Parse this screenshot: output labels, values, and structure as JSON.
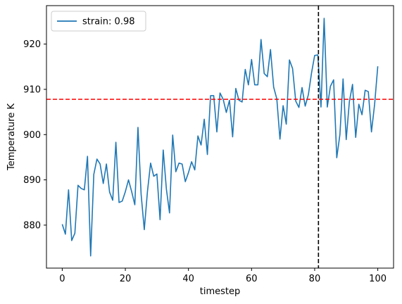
{
  "chart_data": {
    "type": "line",
    "xlabel": "timestep",
    "ylabel": "Temperature K",
    "xlim": [
      -5,
      105
    ],
    "ylim": [
      870.5,
      928.5
    ],
    "xticks": [
      0,
      20,
      40,
      60,
      80,
      100
    ],
    "yticks": [
      880,
      890,
      900,
      910,
      920
    ],
    "grid": false,
    "legend": {
      "placement": "top-left"
    },
    "series": [
      {
        "name": "strain: 0.98",
        "color": "#1f77b4",
        "x": [
          0,
          1,
          2,
          3,
          4,
          5,
          6,
          7,
          8,
          9,
          10,
          11,
          12,
          13,
          14,
          15,
          16,
          17,
          18,
          19,
          20,
          21,
          22,
          23,
          24,
          25,
          26,
          27,
          28,
          29,
          30,
          31,
          32,
          33,
          34,
          35,
          36,
          37,
          38,
          39,
          40,
          41,
          42,
          43,
          44,
          45,
          46,
          47,
          48,
          49,
          50,
          51,
          52,
          53,
          54,
          55,
          56,
          57,
          58,
          59,
          60,
          61,
          62,
          63,
          64,
          65,
          66,
          67,
          68,
          69,
          70,
          71,
          72,
          73,
          74,
          75,
          76,
          77,
          78,
          79,
          80,
          81,
          82,
          83,
          84,
          85,
          86,
          87,
          88,
          89,
          90,
          91,
          92,
          93,
          94,
          95,
          96,
          97,
          98,
          99,
          100
        ],
        "y": [
          880.2,
          878.0,
          887.8,
          876.6,
          878.2,
          888.8,
          888.1,
          887.8,
          895.2,
          873.2,
          891.2,
          894.6,
          893.5,
          889.2,
          893.5,
          887.3,
          885.5,
          898.3,
          885.0,
          885.3,
          887.4,
          890.0,
          887.4,
          884.5,
          901.6,
          886.8,
          879.0,
          887.4,
          893.7,
          890.8,
          891.3,
          881.2,
          896.6,
          888.0,
          882.7,
          899.9,
          891.8,
          893.7,
          893.5,
          889.6,
          891.6,
          894.0,
          892.2,
          899.7,
          897.7,
          903.4,
          895.6,
          908.6,
          908.6,
          900.6,
          909.2,
          907.8,
          904.9,
          907.6,
          899.5,
          910.2,
          907.6,
          907.2,
          914.4,
          911.0,
          916.6,
          911.0,
          911.0,
          921.0,
          913.5,
          912.8,
          918.8,
          910.5,
          907.9,
          899.0,
          906.4,
          902.3,
          916.5,
          914.6,
          907.4,
          906.0,
          910.4,
          906.3,
          908.8,
          913.6,
          917.5,
          917.6,
          906.1,
          925.7,
          906.1,
          910.7,
          912.1,
          894.9,
          900.0,
          912.3,
          898.9,
          907.3,
          911.1,
          899.4,
          906.7,
          904.4,
          909.8,
          909.5,
          900.6,
          906.7,
          915.1
        ]
      }
    ],
    "reference_lines": [
      {
        "orientation": "horizontal",
        "value": 907.8,
        "color": "#ff0000",
        "style": "dashed"
      },
      {
        "orientation": "vertical",
        "value": 81.2,
        "color": "#000000",
        "style": "dashed"
      }
    ]
  }
}
